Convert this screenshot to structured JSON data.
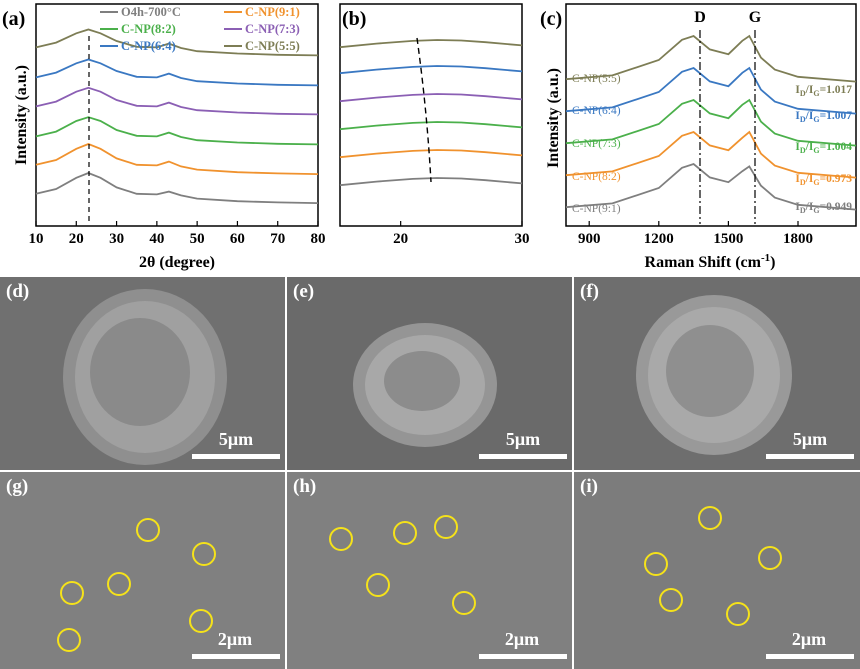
{
  "figure": {
    "panels": {
      "a": "(a)",
      "b": "(b)",
      "c": "(c)",
      "d": "(d)",
      "e": "(e)",
      "f": "(f)",
      "g": "(g)",
      "h": "(h)",
      "i": "(i)"
    },
    "xrd_full": {
      "xlabel": "2θ (degree)",
      "ylabel": "Intensity (a.u.)",
      "ticks": [
        "10",
        "20",
        "30",
        "40",
        "50",
        "60",
        "70",
        "80"
      ],
      "legend": [
        "O4h-700°C",
        "C-NP(9:1)",
        "C-NP(8:2)",
        "C-NP(7:3)",
        "C-NP(6:4)",
        "C-NP(5:5)"
      ]
    },
    "xrd_zoom": {
      "ticks": [
        "20",
        "30"
      ]
    },
    "raman": {
      "xlabel": "Raman Shift (cm",
      "xlabel_sup": "-1",
      "xlabel_end": ")",
      "ylabel": "Intensity (a.u.)",
      "ticks": [
        "900",
        "1200",
        "1500",
        "1800"
      ],
      "peak_d": "D",
      "peak_g": "G",
      "samples": [
        "C-NP(5:5)",
        "C-NP(6:4)",
        "C-NP(7:3)",
        "C-NP(8:2)",
        "C-NP(9:1)"
      ],
      "ratio_prefix": "I",
      "ratio_sub_d": "D",
      "ratio_slash": "/I",
      "ratio_sub_g": "G",
      "ratio_eq": "=",
      "ratios": [
        "1.017",
        "1.007",
        "1.004",
        "0.973",
        "0.949"
      ]
    },
    "sem": {
      "scale_top": "5μm",
      "scale_bottom": "2μm"
    }
  },
  "chart_data": [
    {
      "type": "line",
      "xlabel": "2θ (degree)",
      "ylabel": "Intensity (a.u.)",
      "xlim": [
        10,
        80
      ],
      "series": [
        {
          "name": "O4h-700°C",
          "x": [
            10,
            15,
            20,
            23,
            26,
            30,
            35,
            40,
            43,
            46,
            50,
            60,
            70,
            80
          ],
          "y": [
            0.35,
            0.5,
            0.85,
            1.0,
            0.85,
            0.55,
            0.35,
            0.33,
            0.42,
            0.3,
            0.2,
            0.12,
            0.08,
            0.06
          ]
        },
        {
          "name": "C-NP(9:1)",
          "x": [
            10,
            15,
            20,
            23,
            26,
            30,
            35,
            40,
            43,
            46,
            50,
            60,
            70,
            80
          ],
          "y": [
            0.35,
            0.5,
            0.85,
            1.0,
            0.85,
            0.55,
            0.35,
            0.33,
            0.45,
            0.3,
            0.2,
            0.12,
            0.08,
            0.06
          ]
        },
        {
          "name": "C-NP(8:2)",
          "x": [
            10,
            15,
            20,
            23,
            26,
            30,
            35,
            40,
            43,
            46,
            50,
            60,
            70,
            80
          ],
          "y": [
            0.3,
            0.45,
            0.78,
            0.9,
            0.78,
            0.5,
            0.32,
            0.3,
            0.42,
            0.28,
            0.18,
            0.11,
            0.07,
            0.05
          ]
        },
        {
          "name": "C-NP(7:3)",
          "x": [
            10,
            15,
            20,
            23,
            26,
            30,
            35,
            40,
            43,
            46,
            50,
            60,
            70,
            80
          ],
          "y": [
            0.3,
            0.45,
            0.76,
            0.88,
            0.76,
            0.5,
            0.32,
            0.3,
            0.42,
            0.28,
            0.18,
            0.11,
            0.07,
            0.05
          ]
        },
        {
          "name": "C-NP(6:4)",
          "x": [
            10,
            15,
            20,
            23,
            26,
            30,
            35,
            40,
            43,
            46,
            50,
            60,
            70,
            80
          ],
          "y": [
            0.3,
            0.45,
            0.74,
            0.86,
            0.74,
            0.5,
            0.32,
            0.3,
            0.42,
            0.28,
            0.18,
            0.11,
            0.07,
            0.05
          ]
        },
        {
          "name": "C-NP(5:5)",
          "x": [
            10,
            15,
            20,
            23,
            26,
            30,
            35,
            40,
            43,
            46,
            50,
            60,
            70,
            80
          ],
          "y": [
            0.3,
            0.45,
            0.74,
            0.86,
            0.74,
            0.5,
            0.32,
            0.3,
            0.42,
            0.28,
            0.18,
            0.11,
            0.07,
            0.05
          ]
        }
      ],
      "colors": [
        "#7f7f7f",
        "#f0922e",
        "#4bb04b",
        "#8b5fb4",
        "#3a78c2",
        "#7d7d55"
      ]
    },
    {
      "type": "line",
      "xlim": [
        15,
        30
      ],
      "series": [
        {
          "name": "O4h-700°C",
          "x": [
            15,
            18,
            21,
            23,
            25,
            27,
            30
          ],
          "y": [
            0.6,
            0.8,
            0.95,
            1.0,
            0.97,
            0.88,
            0.7
          ]
        },
        {
          "name": "C-NP(9:1)",
          "x": [
            15,
            18,
            21,
            23,
            25,
            27,
            30
          ],
          "y": [
            0.6,
            0.8,
            0.95,
            1.0,
            0.97,
            0.88,
            0.7
          ]
        },
        {
          "name": "C-NP(8:2)",
          "x": [
            15,
            18,
            21,
            23,
            25,
            27,
            30
          ],
          "y": [
            0.6,
            0.8,
            0.95,
            1.0,
            0.97,
            0.88,
            0.7
          ]
        },
        {
          "name": "C-NP(7:3)",
          "x": [
            15,
            18,
            21,
            23,
            25,
            27,
            30
          ],
          "y": [
            0.6,
            0.8,
            0.95,
            1.0,
            0.97,
            0.88,
            0.7
          ]
        },
        {
          "name": "C-NP(6:4)",
          "x": [
            15,
            18,
            21,
            23,
            25,
            27,
            30
          ],
          "y": [
            0.6,
            0.8,
            0.95,
            1.0,
            0.97,
            0.88,
            0.7
          ]
        },
        {
          "name": "C-NP(5:5)",
          "x": [
            15,
            18,
            21,
            23,
            25,
            27,
            30
          ],
          "y": [
            0.6,
            0.8,
            0.95,
            1.0,
            0.97,
            0.88,
            0.7
          ]
        }
      ],
      "colors": [
        "#7f7f7f",
        "#f0922e",
        "#4bb04b",
        "#8b5fb4",
        "#3a78c2",
        "#7d7d55"
      ]
    },
    {
      "type": "line",
      "xlabel": "Raman Shift (cm-1)",
      "ylabel": "Intensity (a.u.)",
      "xlim": [
        800,
        2050
      ],
      "series": [
        {
          "name": "C-NP(9:1)",
          "x": [
            800,
            1000,
            1200,
            1300,
            1350,
            1420,
            1500,
            1560,
            1590,
            1640,
            1700,
            1800,
            2050
          ],
          "y": [
            0.1,
            0.18,
            0.5,
            0.92,
            1.0,
            0.72,
            0.62,
            0.85,
            0.95,
            0.55,
            0.3,
            0.15,
            0.05
          ]
        },
        {
          "name": "C-NP(8:2)",
          "x": [
            800,
            1000,
            1200,
            1300,
            1350,
            1420,
            1500,
            1560,
            1590,
            1640,
            1700,
            1800,
            2050
          ],
          "y": [
            0.1,
            0.18,
            0.5,
            0.92,
            1.0,
            0.72,
            0.62,
            0.88,
            1.0,
            0.55,
            0.3,
            0.15,
            0.05
          ]
        },
        {
          "name": "C-NP(7:3)",
          "x": [
            800,
            1000,
            1200,
            1300,
            1350,
            1420,
            1500,
            1560,
            1590,
            1640,
            1700,
            1800,
            2050
          ],
          "y": [
            0.1,
            0.18,
            0.5,
            0.92,
            1.0,
            0.72,
            0.62,
            0.9,
            1.0,
            0.55,
            0.3,
            0.15,
            0.05
          ]
        },
        {
          "name": "C-NP(6:4)",
          "x": [
            800,
            1000,
            1200,
            1300,
            1350,
            1420,
            1500,
            1560,
            1590,
            1640,
            1700,
            1800,
            2050
          ],
          "y": [
            0.1,
            0.18,
            0.5,
            0.92,
            1.0,
            0.72,
            0.62,
            0.9,
            1.0,
            0.55,
            0.3,
            0.15,
            0.05
          ]
        },
        {
          "name": "C-NP(5:5)",
          "x": [
            800,
            1000,
            1200,
            1300,
            1350,
            1420,
            1500,
            1560,
            1590,
            1640,
            1700,
            1800,
            2050
          ],
          "y": [
            0.1,
            0.18,
            0.5,
            0.92,
            1.0,
            0.72,
            0.62,
            0.9,
            1.0,
            0.55,
            0.3,
            0.15,
            0.05
          ]
        }
      ],
      "colors": [
        "#7f7f7f",
        "#f0922e",
        "#4bb04b",
        "#3a78c2",
        "#7d7d55"
      ]
    }
  ]
}
